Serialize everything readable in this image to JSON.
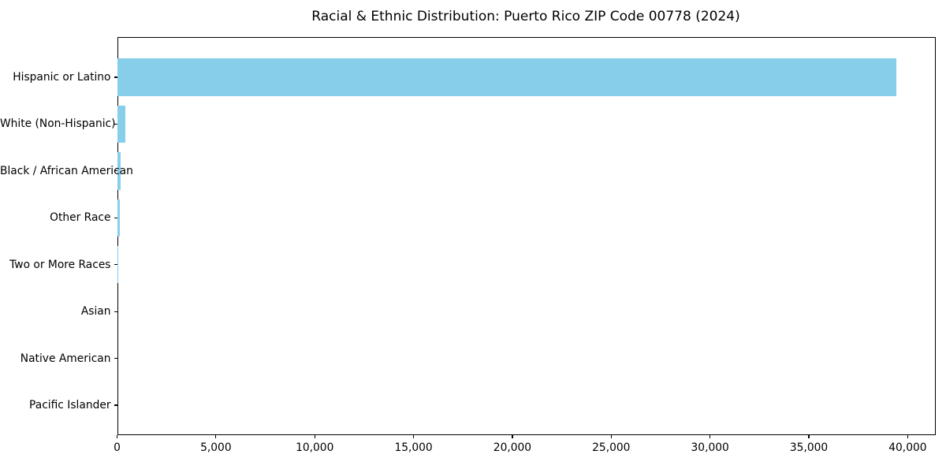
{
  "chart_data": {
    "type": "bar",
    "orientation": "horizontal",
    "title": "Racial & Ethnic Distribution: Puerto Rico ZIP Code 00778 (2024)",
    "xlabel": "",
    "ylabel": "",
    "categories": [
      "Hispanic or Latino",
      "White (Non-Hispanic)",
      "Black / African American",
      "Other Race",
      "Two or More Races",
      "Asian",
      "Native American",
      "Pacific Islander"
    ],
    "values": [
      39400,
      400,
      160,
      110,
      40,
      0,
      0,
      0
    ],
    "xlim": [
      0,
      41400
    ],
    "xticks": [
      0,
      5000,
      10000,
      15000,
      20000,
      25000,
      30000,
      35000,
      40000
    ],
    "xtick_labels": [
      "0",
      "5,000",
      "10,000",
      "15,000",
      "20,000",
      "25,000",
      "30,000",
      "35,000",
      "40,000"
    ],
    "bar_color": "#87CEEB",
    "spine_color": "#000000",
    "background_color": "#ffffff",
    "grid": false,
    "legend": "none"
  }
}
